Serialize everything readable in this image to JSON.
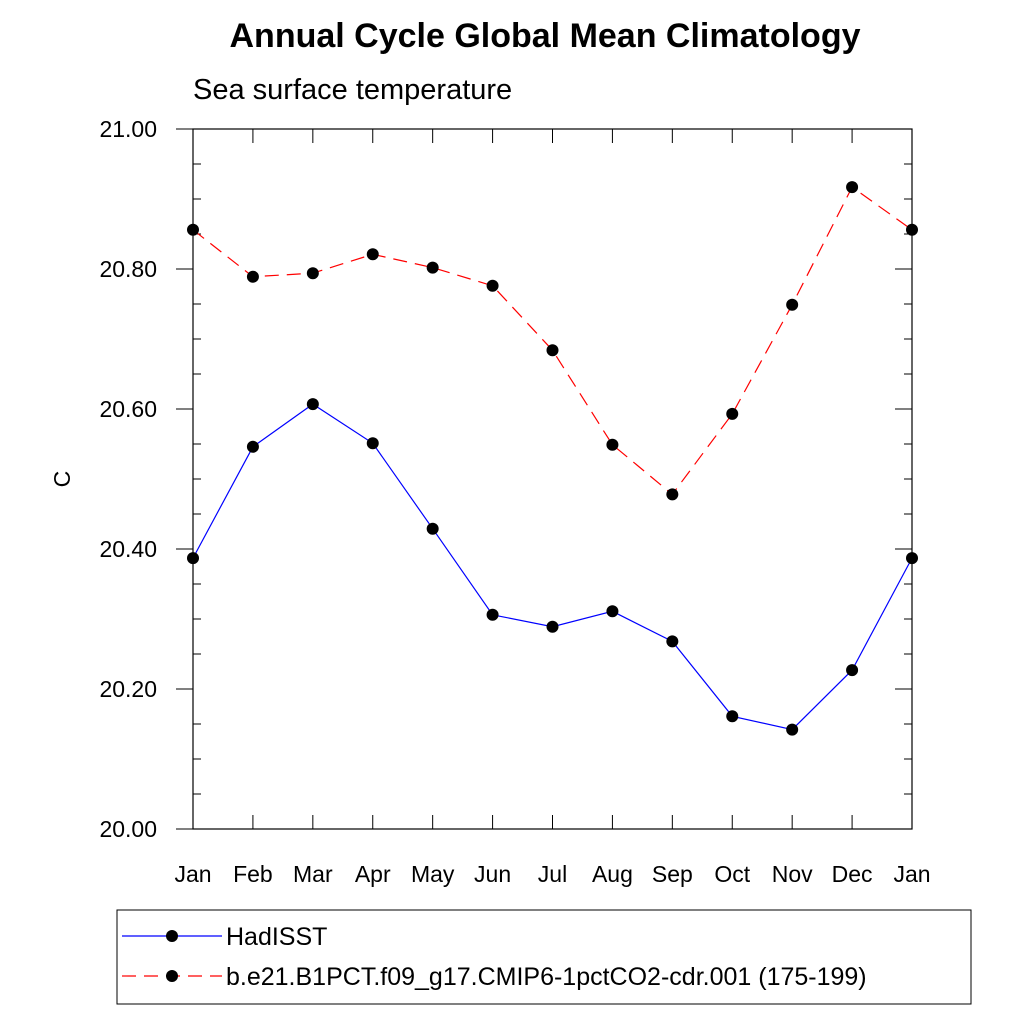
{
  "chart_data": {
    "type": "line",
    "title": "Annual Cycle Global Mean Climatology",
    "subtitle": "Sea surface temperature",
    "xlabel": "",
    "ylabel": "C",
    "categories": [
      "Jan",
      "Feb",
      "Mar",
      "Apr",
      "May",
      "Jun",
      "Jul",
      "Aug",
      "Sep",
      "Oct",
      "Nov",
      "Dec",
      "Jan"
    ],
    "ylim": [
      20.0,
      21.0
    ],
    "yticks": [
      "20.00",
      "20.20",
      "20.40",
      "20.60",
      "20.80",
      "21.00"
    ],
    "grid": false,
    "legend_position": "bottom",
    "series": [
      {
        "name": "HadISST",
        "color": "#0000ff",
        "style": "solid",
        "values": [
          20.387,
          20.546,
          20.607,
          20.551,
          20.429,
          20.306,
          20.289,
          20.311,
          20.268,
          20.161,
          20.142,
          20.227,
          20.387
        ]
      },
      {
        "name": "b.e21.B1PCT.f09_g17.CMIP6-1pctCO2-cdr.001 (175-199)",
        "color": "#ff0000",
        "style": "dashed",
        "values": [
          20.856,
          20.789,
          20.794,
          20.821,
          20.802,
          20.776,
          20.684,
          20.549,
          20.478,
          20.593,
          20.749,
          20.917,
          20.856
        ]
      }
    ]
  }
}
